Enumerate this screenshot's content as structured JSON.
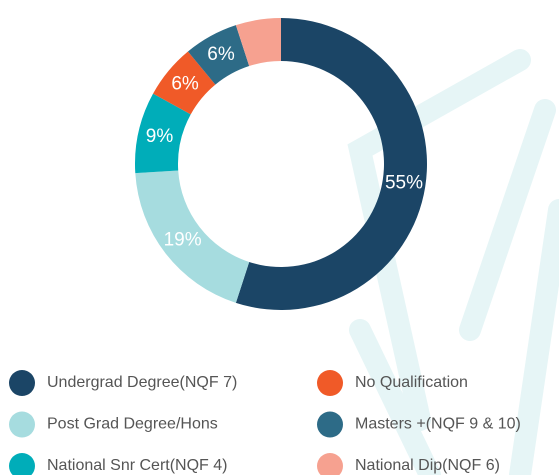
{
  "chart_data": {
    "type": "donut",
    "categories": [
      "Undergrad Degree(NQF 7)",
      "Post Grad Degree/Hons",
      "National Snr Cert(NQF 4)",
      "No Qualification",
      "Masters +(NQF 9 & 10)",
      "National Dip(NQF 6)"
    ],
    "values": [
      55,
      19,
      9,
      6,
      6,
      5
    ],
    "value_labels": [
      "55%",
      "19%",
      "9%",
      "6%",
      "6%",
      null
    ],
    "colors": [
      "#1b4566",
      "#a6dcdf",
      "#00adb9",
      "#f05a28",
      "#2d6b87",
      "#f6a190"
    ]
  }
}
